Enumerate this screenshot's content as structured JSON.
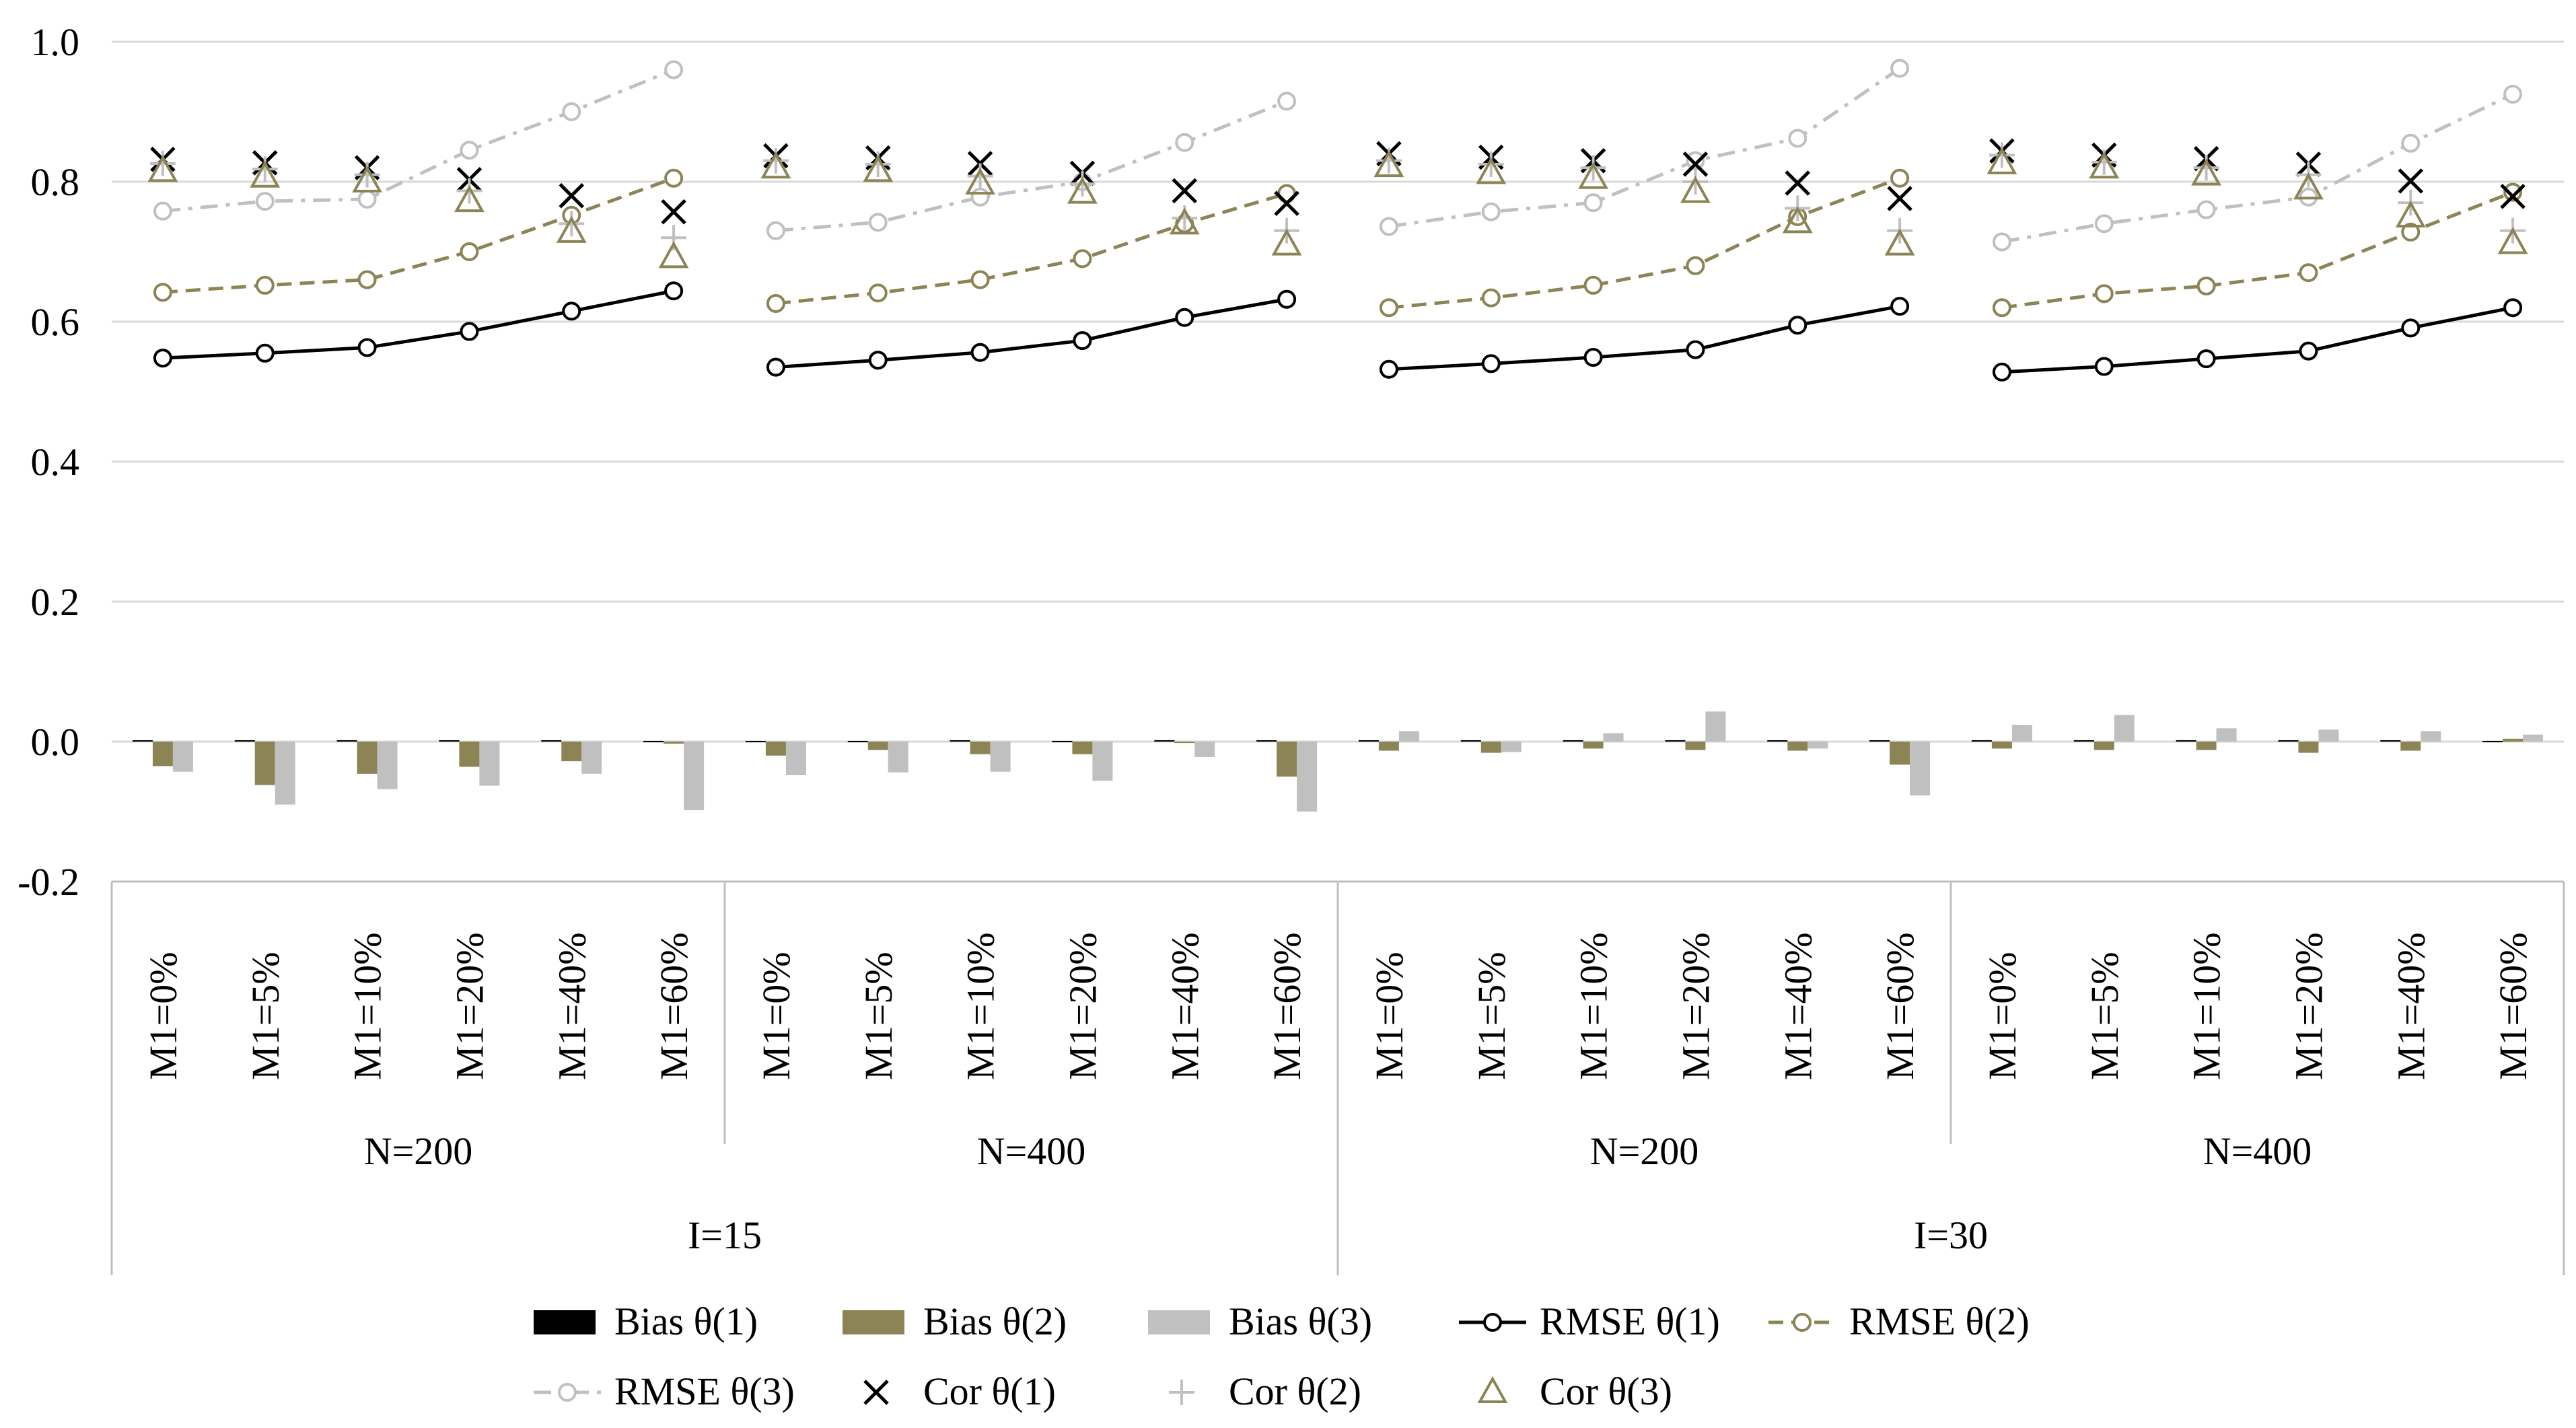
{
  "chart_data": {
    "type": "bar+line",
    "title": "",
    "xlabel": "",
    "ylabel": "",
    "ylim": [
      -0.2,
      1.0
    ],
    "yticks": [
      -0.2,
      0.0,
      0.2,
      0.4,
      0.6,
      0.8,
      1.0
    ],
    "ytick_labels": [
      "-0.2",
      "0.0",
      "0.2",
      "0.4",
      "0.6",
      "0.8",
      "1.0"
    ],
    "gridlines": true,
    "legend_position": "bottom",
    "categories": [
      "M1=0%",
      "M1=5%",
      "M1=10%",
      "M1=20%",
      "M1=40%",
      "M1=60%"
    ],
    "groups_level1": [
      "N=200",
      "N=400",
      "N=200",
      "N=400"
    ],
    "groups_level2": [
      "I=15",
      "I=30"
    ],
    "colors": {
      "black": "#000000",
      "olive": "#8c8455",
      "gray": "#c0c0c0",
      "grid": "#d9d9d9",
      "axis": "#bfbfbf"
    },
    "series": [
      {
        "name": "Bias θ(1)",
        "type": "bar",
        "color": "#000000",
        "values": [
          [
            0.002,
            0.002,
            0.002,
            0.002,
            0.002,
            0.001
          ],
          [
            0.001,
            0.001,
            0.002,
            0.001,
            0.002,
            0.002
          ],
          [
            0.002,
            0.002,
            0.002,
            0.002,
            0.002,
            0.002
          ],
          [
            0.002,
            0.002,
            0.002,
            0.002,
            0.002,
            0.001
          ]
        ]
      },
      {
        "name": "Bias θ(2)",
        "type": "bar",
        "color": "#8c8455",
        "values": [
          [
            -0.035,
            -0.062,
            -0.046,
            -0.036,
            -0.028,
            -0.003
          ],
          [
            -0.02,
            -0.012,
            -0.018,
            -0.018,
            -0.002,
            -0.05
          ],
          [
            -0.013,
            -0.016,
            -0.01,
            -0.012,
            -0.013,
            -0.033
          ],
          [
            -0.01,
            -0.012,
            -0.012,
            -0.016,
            -0.013,
            0.004
          ]
        ]
      },
      {
        "name": "Bias θ(3)",
        "type": "bar",
        "color": "#c0c0c0",
        "values": [
          [
            -0.043,
            -0.09,
            -0.068,
            -0.063,
            -0.046,
            -0.098
          ],
          [
            -0.048,
            -0.044,
            -0.043,
            -0.056,
            -0.022,
            -0.1
          ],
          [
            0.015,
            -0.015,
            0.012,
            0.043,
            -0.01,
            -0.077
          ],
          [
            0.024,
            0.038,
            0.019,
            0.017,
            0.015,
            0.01
          ]
        ]
      },
      {
        "name": "RMSE θ(1)",
        "type": "line",
        "color": "#000000",
        "style": "solid",
        "marker": "circle",
        "values": [
          [
            0.548,
            0.555,
            0.563,
            0.586,
            0.615,
            0.644
          ],
          [
            0.535,
            0.545,
            0.556,
            0.573,
            0.606,
            0.632
          ],
          [
            0.532,
            0.54,
            0.549,
            0.56,
            0.595,
            0.622
          ],
          [
            0.528,
            0.536,
            0.547,
            0.558,
            0.591,
            0.62
          ]
        ]
      },
      {
        "name": "RMSE θ(2)",
        "type": "line",
        "color": "#8c8455",
        "style": "dashed",
        "marker": "circle",
        "values": [
          [
            0.642,
            0.652,
            0.66,
            0.7,
            0.752,
            0.805
          ],
          [
            0.626,
            0.641,
            0.66,
            0.69,
            0.74,
            0.783
          ],
          [
            0.62,
            0.634,
            0.652,
            0.68,
            0.75,
            0.805
          ],
          [
            0.62,
            0.64,
            0.651,
            0.67,
            0.728,
            0.785
          ]
        ]
      },
      {
        "name": "RMSE θ(3)",
        "type": "line",
        "color": "#c0c0c0",
        "style": "dashdot",
        "marker": "circle",
        "values": [
          [
            0.758,
            0.772,
            0.775,
            0.845,
            0.9,
            0.96
          ],
          [
            0.73,
            0.742,
            0.778,
            0.8,
            0.856,
            0.915
          ],
          [
            0.736,
            0.757,
            0.77,
            0.83,
            0.862,
            0.962
          ],
          [
            0.714,
            0.74,
            0.76,
            0.778,
            0.855,
            0.925
          ]
        ]
      },
      {
        "name": "Cor θ(1)",
        "type": "marker",
        "color": "#000000",
        "marker": "x",
        "values": [
          [
            0.832,
            0.827,
            0.82,
            0.803,
            0.78,
            0.757
          ],
          [
            0.837,
            0.834,
            0.826,
            0.812,
            0.787,
            0.769
          ],
          [
            0.84,
            0.835,
            0.83,
            0.825,
            0.798,
            0.776
          ],
          [
            0.844,
            0.838,
            0.833,
            0.825,
            0.801,
            0.779
          ]
        ]
      },
      {
        "name": "Cor θ(2)",
        "type": "marker",
        "color": "#c0c0c0",
        "marker": "plus",
        "values": [
          [
            0.826,
            0.818,
            0.81,
            0.787,
            0.74,
            0.72
          ],
          [
            0.83,
            0.825,
            0.808,
            0.797,
            0.748,
            0.73
          ],
          [
            0.83,
            0.825,
            0.82,
            0.8,
            0.762,
            0.73
          ],
          [
            0.838,
            0.828,
            0.82,
            0.81,
            0.77,
            0.73
          ]
        ]
      },
      {
        "name": "Cor θ(3)",
        "type": "marker",
        "color": "#8c8455",
        "marker": "triangle",
        "values": [
          [
            0.815,
            0.807,
            0.8,
            0.772,
            0.728,
            0.692
          ],
          [
            0.82,
            0.815,
            0.797,
            0.784,
            0.74,
            0.71
          ],
          [
            0.822,
            0.812,
            0.805,
            0.785,
            0.742,
            0.71
          ],
          [
            0.826,
            0.82,
            0.81,
            0.79,
            0.75,
            0.712
          ]
        ]
      }
    ]
  }
}
